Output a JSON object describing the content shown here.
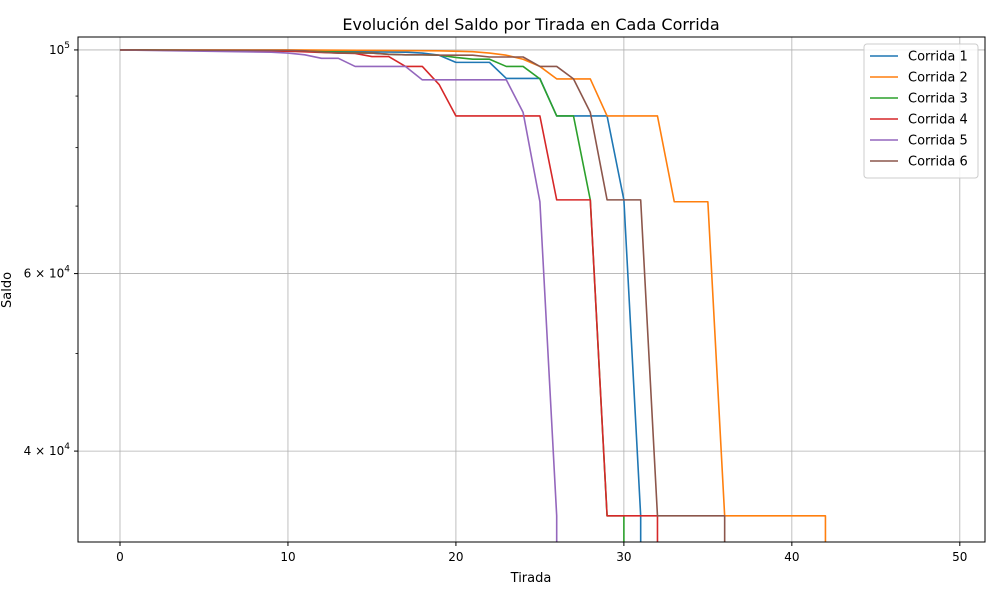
{
  "chart_data": {
    "type": "line",
    "title": "Evolución del Saldo por Tirada en Cada Corrida",
    "xlabel": "Tirada",
    "ylabel": "Saldo",
    "xlim": [
      -2.5,
      51.5
    ],
    "ylim": [
      32500,
      103000
    ],
    "yscale": "log",
    "grid": true,
    "legend_position": "top-right",
    "x_ticks": [
      0,
      10,
      20,
      30,
      40,
      50
    ],
    "x_tick_labels": [
      "0",
      "10",
      "20",
      "30",
      "40",
      "50"
    ],
    "y_ticks": [
      40000,
      60000,
      100000
    ],
    "y_tick_labels": [
      {
        "base": "4 × 10",
        "exp": "4"
      },
      {
        "base": "6 × 10",
        "exp": "4"
      },
      {
        "base": "10",
        "exp": "5"
      }
    ],
    "y_minor_ticks": [
      50000,
      70000,
      80000,
      90000
    ],
    "series": [
      {
        "name": "Corrida 1",
        "color": "#1f77b4",
        "x": [
          0,
          10,
          17,
          18,
          19,
          20,
          21,
          22,
          23,
          24,
          25,
          26,
          27,
          28,
          29,
          30,
          31,
          31
        ],
        "y": [
          100000,
          99700,
          99500,
          99300,
          98800,
          97200,
          97200,
          97200,
          93700,
          93700,
          93700,
          86000,
          86000,
          86000,
          86000,
          71000,
          34500,
          32500
        ]
      },
      {
        "name": "Corrida 2",
        "color": "#ff7f0e",
        "x": [
          0,
          10,
          19,
          21,
          22,
          23,
          24,
          25,
          26,
          27,
          28,
          29,
          30,
          31,
          32,
          33,
          34,
          35,
          36,
          37,
          38,
          39,
          40,
          41,
          42,
          42
        ],
        "y": [
          100000,
          100000,
          99800,
          99600,
          99300,
          98800,
          97900,
          96300,
          93600,
          93600,
          93600,
          86000,
          86000,
          86000,
          86000,
          70700,
          70700,
          70700,
          34500,
          34500,
          34500,
          34500,
          34500,
          34500,
          34500,
          32500
        ]
      },
      {
        "name": "Corrida 3",
        "color": "#2ca02c",
        "x": [
          0,
          10,
          15,
          16,
          17,
          18,
          19,
          20,
          21,
          22,
          23,
          24,
          25,
          26,
          27,
          28,
          29,
          30,
          30
        ],
        "y": [
          100000,
          99800,
          99300,
          99000,
          98900,
          98900,
          98800,
          98300,
          97900,
          97900,
          96300,
          96300,
          93600,
          86000,
          86000,
          71000,
          34500,
          34500,
          32500
        ]
      },
      {
        "name": "Corrida 4",
        "color": "#d62728",
        "x": [
          0,
          10,
          13,
          14,
          15,
          16,
          17,
          18,
          19,
          20,
          21,
          22,
          23,
          24,
          25,
          26,
          27,
          28,
          29,
          30,
          31,
          32,
          32
        ],
        "y": [
          100000,
          99700,
          99300,
          99200,
          98500,
          98500,
          96300,
          96300,
          92400,
          86000,
          86000,
          86000,
          86000,
          86000,
          86000,
          71000,
          71000,
          71000,
          34500,
          34500,
          34500,
          34500,
          32500
        ]
      },
      {
        "name": "Corrida 5",
        "color": "#9467bd",
        "x": [
          0,
          9,
          10,
          11,
          12,
          13,
          14,
          15,
          16,
          17,
          18,
          19,
          20,
          21,
          22,
          23,
          24,
          25,
          26,
          26
        ],
        "y": [
          100000,
          99500,
          99300,
          98900,
          98100,
          98100,
          96300,
          96300,
          96300,
          96300,
          93400,
          93400,
          93400,
          93400,
          93400,
          93400,
          86700,
          70700,
          34500,
          32500
        ]
      },
      {
        "name": "Corrida 6",
        "color": "#8c564b",
        "x": [
          0,
          10,
          11,
          12,
          13,
          14,
          15,
          16,
          17,
          18,
          19,
          20,
          21,
          22,
          23,
          24,
          25,
          26,
          27,
          28,
          29,
          30,
          31,
          32,
          33,
          34,
          35,
          36,
          36
        ],
        "y": [
          100000,
          99900,
          99800,
          99500,
          99300,
          99300,
          99300,
          99000,
          98900,
          98900,
          98800,
          98800,
          98800,
          98400,
          98400,
          98400,
          96300,
          96300,
          93600,
          86700,
          71000,
          71000,
          71000,
          34500,
          34500,
          34500,
          34500,
          34500,
          32500
        ]
      }
    ]
  }
}
